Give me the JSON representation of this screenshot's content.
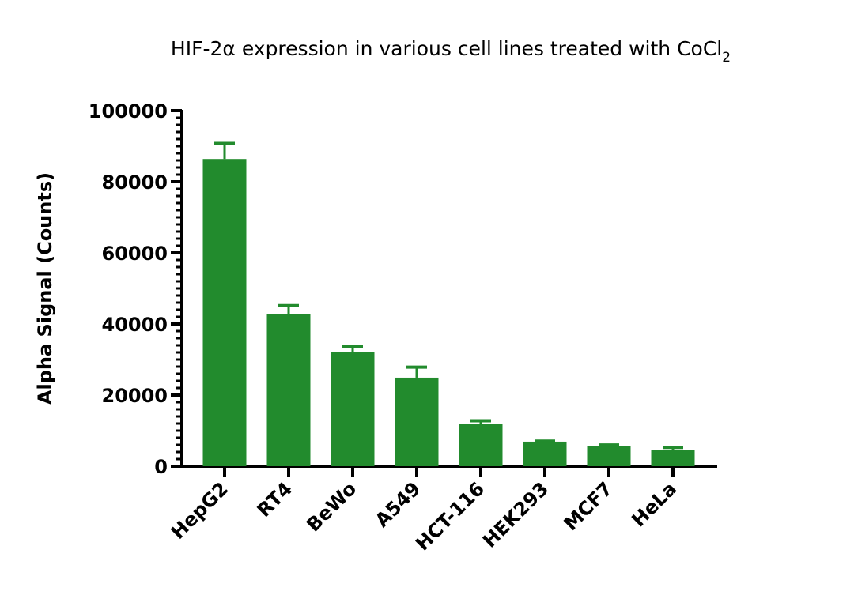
{
  "chart_data": {
    "type": "bar",
    "title": "HIF-2α expression in various cell lines treated with CoCl",
    "title_subscript": "2",
    "xlabel": "",
    "ylabel": "Alpha Signal (Counts)",
    "ylim": [
      0,
      100000
    ],
    "yticks": [
      0,
      20000,
      40000,
      60000,
      80000,
      100000
    ],
    "ytick_labels": [
      "0",
      "20000",
      "40000",
      "60000",
      "80000",
      "100000"
    ],
    "minor_tick_step": 2000,
    "grid": false,
    "categories": [
      "HepG2",
      "RT4",
      "BeWo",
      "A549",
      "HCT-116",
      "HEK293",
      "MCF7",
      "HeLa"
    ],
    "values": [
      86400,
      42700,
      32200,
      24900,
      12000,
      6900,
      5600,
      4500
    ],
    "error_upper": [
      91100,
      45500,
      34000,
      28200,
      13100,
      7400,
      6300,
      5600
    ],
    "bar_color": "#228b2d"
  }
}
